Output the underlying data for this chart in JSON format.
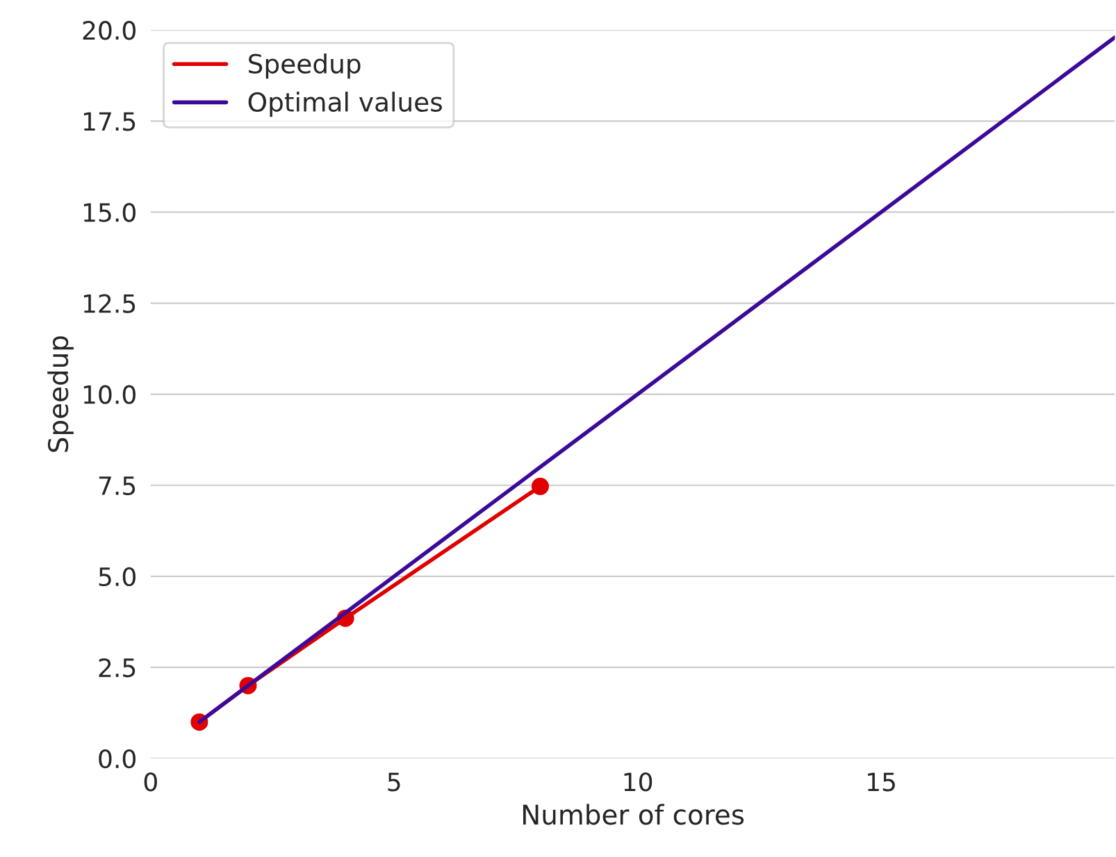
{
  "chart_data": {
    "type": "line",
    "xlabel": "Number of cores",
    "ylabel": "Speedup",
    "series": [
      {
        "name": "Speedup",
        "color": "#e00000",
        "x": [
          1,
          2,
          4,
          8
        ],
        "values": [
          1.0,
          2.0,
          3.85,
          7.47
        ],
        "marker": "circle"
      },
      {
        "name": "Optimal values",
        "color": "#3c0a9a",
        "x": [
          1,
          19.8
        ],
        "values": [
          1,
          19.8
        ],
        "marker": "none"
      }
    ],
    "xlim": [
      0,
      19.8
    ],
    "xticks": [
      0,
      5,
      10,
      15
    ],
    "ylim": [
      0,
      20
    ],
    "yticks": [
      {
        "value": 0,
        "label": "0.0"
      },
      2.5,
      {
        "value": 5,
        "label": "5.0"
      },
      7.5,
      {
        "value": 10,
        "label": "10.0"
      },
      12.5,
      {
        "value": 15,
        "label": "15.0"
      },
      17.5,
      {
        "value": 20,
        "label": "20.0"
      }
    ],
    "grid": "y",
    "legend": "top left",
    "line_style": "solid"
  }
}
